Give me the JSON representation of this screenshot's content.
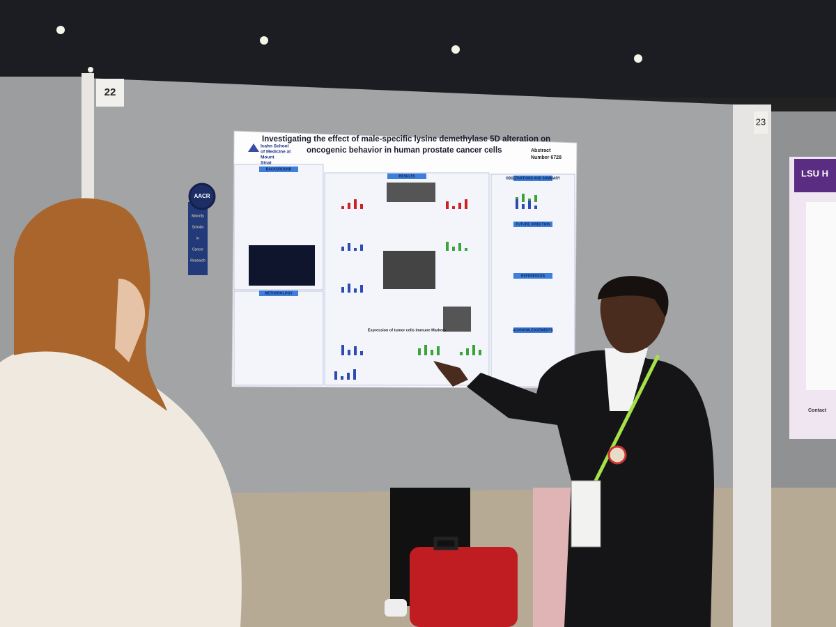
{
  "booth_numbers": {
    "left": "22",
    "right": "23"
  },
  "poster": {
    "title_lines": [
      "Investigating the effect of male-specific lysine demethylase 5D alteration on",
      "oncogenic behavior in human prostate cancer cells"
    ],
    "abstract": [
      "Abstract",
      "Number 6728"
    ],
    "institution": [
      "Icahn School",
      "of Medicine at",
      "Mount",
      "Sinai"
    ],
    "sections": [
      "BACKGROUND",
      "RESULTS",
      "METHODOLOGY",
      "OBSERVATIONS AND SUMMARY",
      "FUTURE DIRECTION",
      "REFERENCES",
      "ACKNOWLEDGEMENTS"
    ],
    "figure_caption": "Expression of tumor cells immune Markers"
  },
  "ribbon": {
    "org": "AACR",
    "text": [
      "Minority",
      "Scholar",
      "in",
      "Cancer",
      "Research"
    ]
  },
  "neighbor_poster": {
    "logo": "LSU H",
    "contact": "Contact"
  }
}
